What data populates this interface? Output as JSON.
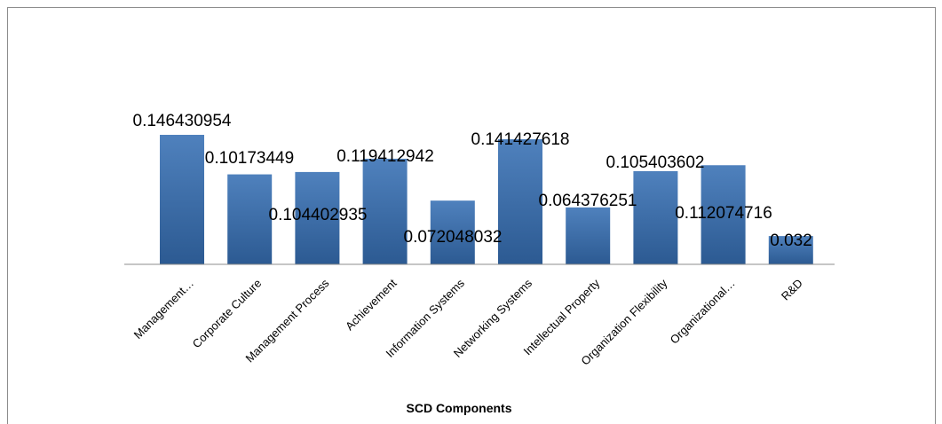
{
  "chart_data": {
    "type": "bar",
    "title": "",
    "xlabel": "SCD Components",
    "ylabel": "",
    "categories": [
      "Management…",
      "Corporate Culture",
      "Management Process",
      "Achievement",
      "Information Systems",
      "Networking Systems",
      "Intellectual Property",
      "Organization Flexibility",
      "Organizational…",
      "R&D"
    ],
    "values": [
      0.146430954,
      0.10173449,
      0.104402935,
      0.119412942,
      0.072048032,
      0.141427618,
      0.064376251,
      0.105403602,
      0.112074716,
      0.032
    ],
    "data_labels": [
      "0.146430954",
      "0.10173449",
      "0.104402935",
      "0.119412942",
      "0.072048032",
      "0.141427618",
      "0.064376251",
      "0.105403602",
      "0.112074716",
      "0.032"
    ],
    "ylim": [
      0,
      0.15
    ],
    "grid": false,
    "legend": "none",
    "colors": {
      "bar_top": "#4f81bd",
      "bar_bottom": "#2c5a92",
      "axis": "#8c8c8c"
    }
  }
}
